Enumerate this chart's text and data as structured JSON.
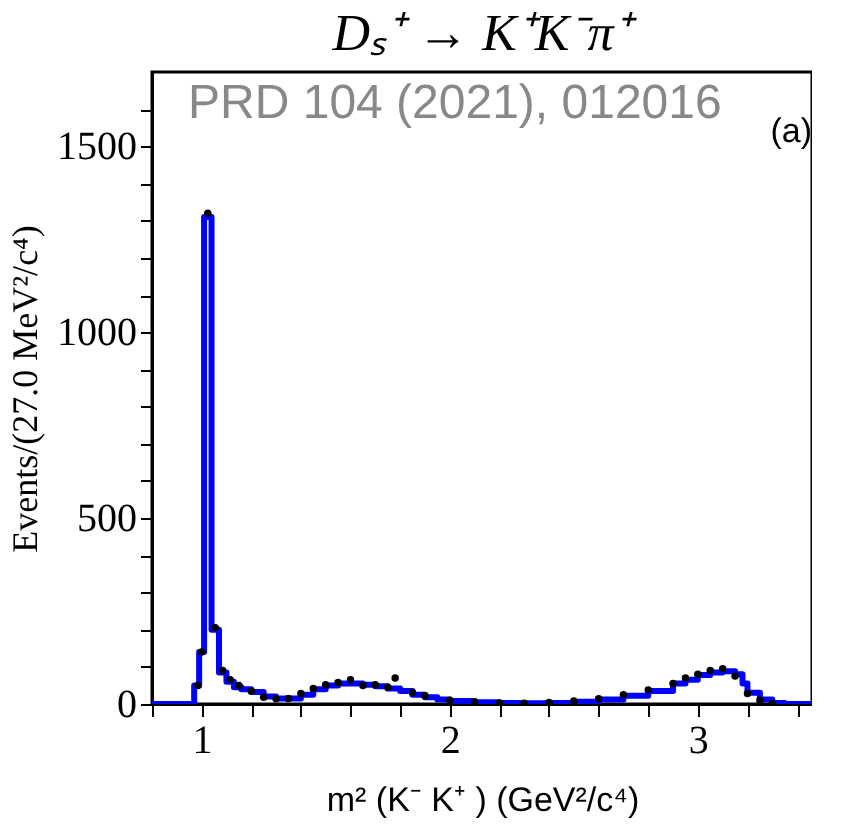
{
  "chart_data": {
    "type": "step",
    "title": "Dₛ⁺ → K⁺K⁻π⁺",
    "xlabel": "m² (K⁻ K⁺ ) (GeV²/c⁴)",
    "ylabel": "Events/(27.0 MeV²/c⁴)",
    "annotations": [
      "PRD 104 (2021), 012016",
      "(a)"
    ],
    "xlim": [
      0.8,
      3.46
    ],
    "ylim": [
      0,
      1700
    ],
    "xticks": [
      {
        "value": 0.8,
        "label": null
      },
      1,
      {
        "value": 1.2,
        "label": null
      },
      {
        "value": 1.4,
        "label": null
      },
      {
        "value": 1.6,
        "label": null
      },
      {
        "value": 1.8,
        "label": null
      },
      2,
      {
        "value": 2.2,
        "label": null
      },
      {
        "value": 2.4,
        "label": null
      },
      {
        "value": 2.6,
        "label": null
      },
      {
        "value": 2.8,
        "label": null
      },
      3,
      {
        "value": 3.2,
        "label": null
      },
      {
        "value": 3.4,
        "label": null
      }
    ],
    "yticks": [
      0,
      {
        "value": 100,
        "label": null
      },
      {
        "value": 200,
        "label": null
      },
      {
        "value": 300,
        "label": null
      },
      {
        "value": 400,
        "label": null
      },
      500,
      {
        "value": 600,
        "label": null
      },
      {
        "value": 700,
        "label": null
      },
      {
        "value": 800,
        "label": null
      },
      {
        "value": 900,
        "label": null
      },
      1000,
      {
        "value": 1100,
        "label": null
      },
      {
        "value": 1200,
        "label": null
      },
      {
        "value": 1300,
        "label": null
      },
      {
        "value": 1400,
        "label": null
      },
      1500,
      {
        "value": 1600,
        "label": null
      }
    ],
    "grid": false,
    "series": [
      {
        "color": "#0000ff",
        "marker": "none",
        "x": [
          0.8,
          0.97,
          0.99,
          1.01,
          1.04,
          1.07,
          1.1,
          1.13,
          1.16,
          1.2,
          1.25,
          1.3,
          1.35,
          1.4,
          1.45,
          1.5,
          1.55,
          1.6,
          1.65,
          1.7,
          1.75,
          1.8,
          1.85,
          1.9,
          1.95,
          2.0,
          2.1,
          2.2,
          2.3,
          2.4,
          2.5,
          2.6,
          2.7,
          2.8,
          2.9,
          2.95,
          3.0,
          3.05,
          3.1,
          3.15,
          3.18,
          3.2,
          3.25,
          3.3,
          3.35,
          3.46
        ],
        "values": [
          0,
          50,
          140,
          1310,
          200,
          85,
          60,
          45,
          40,
          32,
          20,
          15,
          15,
          25,
          40,
          50,
          55,
          55,
          52,
          48,
          42,
          35,
          25,
          18,
          12,
          8,
          5,
          3,
          2,
          3,
          6,
          12,
          22,
          35,
          55,
          65,
          78,
          85,
          88,
          80,
          55,
          30,
          12,
          3,
          0,
          0
        ]
      },
      {
        "type": "scatter",
        "color": "#000000",
        "marker": "circle",
        "x": [
          0.985,
          1.0,
          1.025,
          1.055,
          1.085,
          1.115,
          1.15,
          1.2,
          1.25,
          1.3,
          1.35,
          1.4,
          1.45,
          1.5,
          1.55,
          1.6,
          1.65,
          1.7,
          1.75,
          1.78,
          1.85,
          1.9,
          2.0,
          2.1,
          2.2,
          2.3,
          2.4,
          2.5,
          2.6,
          2.7,
          2.8,
          2.9,
          2.95,
          3.0,
          3.05,
          3.1,
          3.15,
          3.2,
          3.25,
          3.3
        ],
        "values": [
          50,
          140,
          1320,
          205,
          90,
          65,
          50,
          35,
          18,
          14,
          15,
          28,
          42,
          52,
          58,
          65,
          50,
          52,
          45,
          70,
          30,
          22,
          10,
          6,
          3,
          2,
          4,
          8,
          14,
          25,
          38,
          55,
          70,
          80,
          90,
          95,
          75,
          28,
          10,
          2
        ]
      }
    ]
  }
}
